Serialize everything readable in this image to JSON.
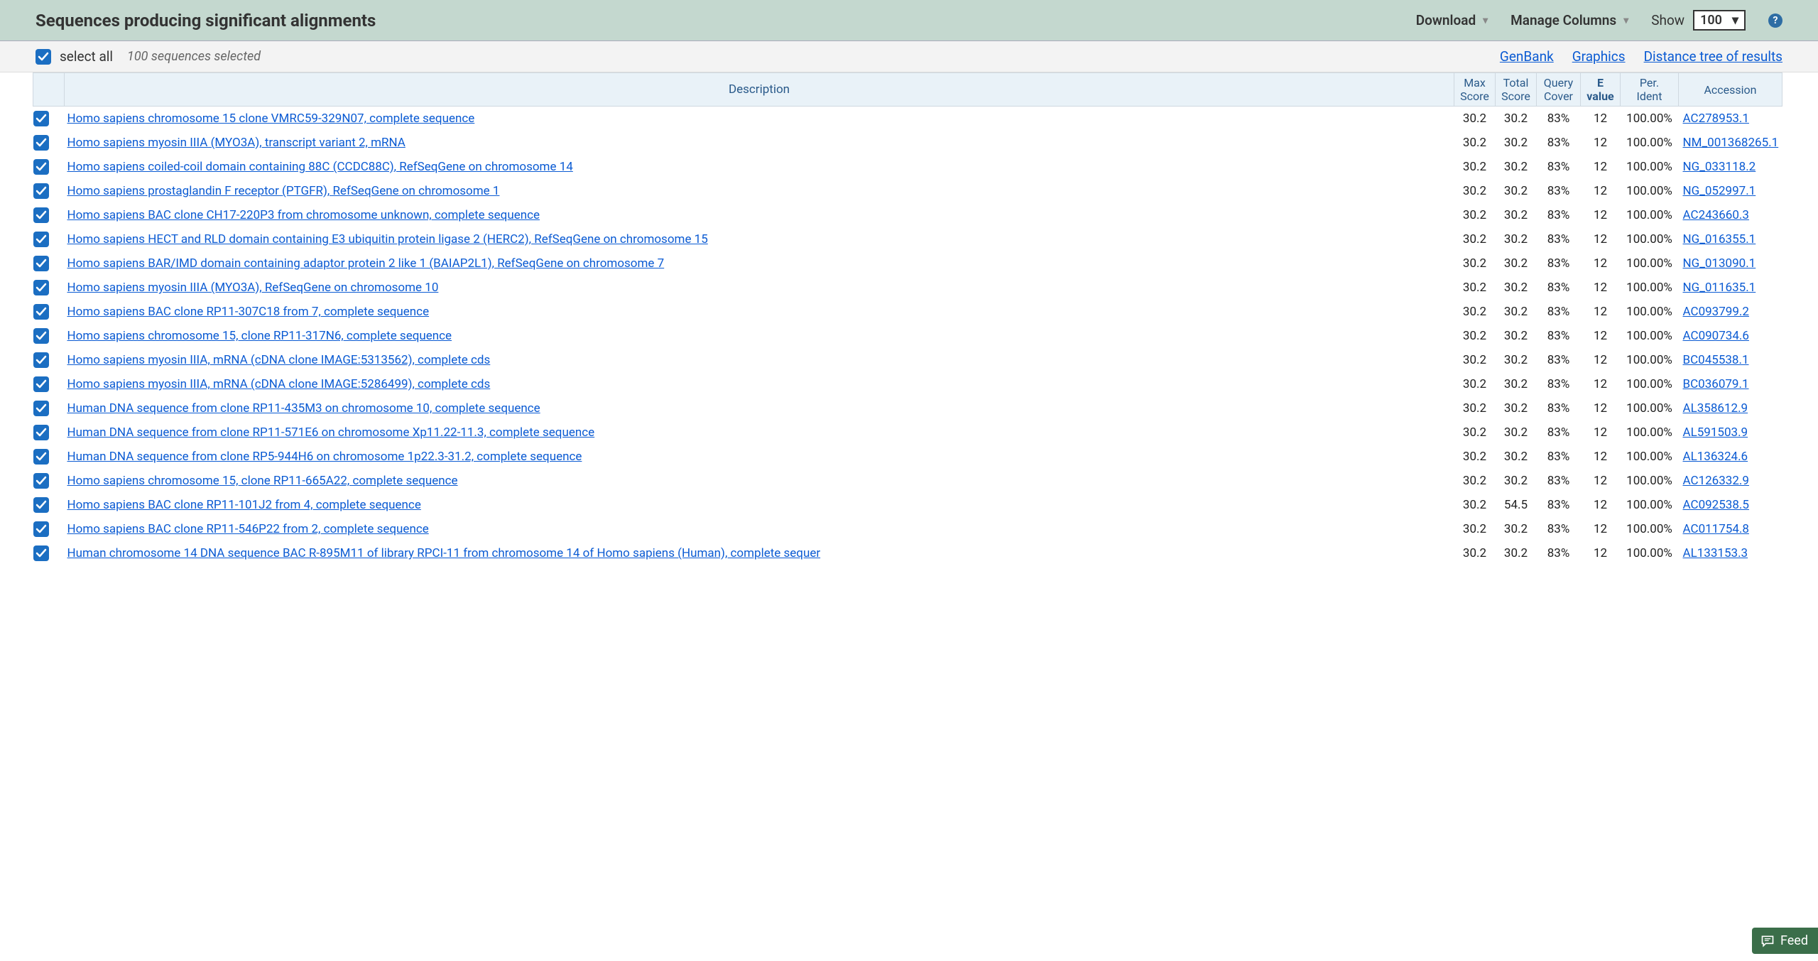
{
  "header": {
    "title": "Sequences producing significant alignments",
    "download_label": "Download",
    "manage_columns_label": "Manage Columns",
    "show_label": "Show",
    "show_value": "100"
  },
  "toolbar": {
    "select_all_label": "select all",
    "selected_text": "100 sequences selected",
    "links": {
      "genbank": "GenBank",
      "graphics": "Graphics",
      "distance_tree": "Distance tree of results"
    }
  },
  "columns": {
    "description": "Description",
    "max_score_l1": "Max",
    "max_score_l2": "Score",
    "total_score_l1": "Total",
    "total_score_l2": "Score",
    "query_cover_l1": "Query",
    "query_cover_l2": "Cover",
    "e_l1": "E",
    "e_l2": "value",
    "per_ident_l1": "Per.",
    "per_ident_l2": "Ident",
    "accession": "Accession"
  },
  "rows": [
    {
      "desc": "Homo sapiens chromosome 15 clone VMRC59-329N07, complete sequence",
      "max": "30.2",
      "total": "30.2",
      "cover": "83%",
      "e": "12",
      "ident": "100.00%",
      "acc": "AC278953.1"
    },
    {
      "desc": "Homo sapiens myosin IIIA (MYO3A), transcript variant 2, mRNA",
      "max": "30.2",
      "total": "30.2",
      "cover": "83%",
      "e": "12",
      "ident": "100.00%",
      "acc": "NM_001368265.1"
    },
    {
      "desc": "Homo sapiens coiled-coil domain containing 88C (CCDC88C), RefSeqGene on chromosome 14",
      "max": "30.2",
      "total": "30.2",
      "cover": "83%",
      "e": "12",
      "ident": "100.00%",
      "acc": "NG_033118.2"
    },
    {
      "desc": "Homo sapiens prostaglandin F receptor (PTGFR), RefSeqGene on chromosome 1",
      "max": "30.2",
      "total": "30.2",
      "cover": "83%",
      "e": "12",
      "ident": "100.00%",
      "acc": "NG_052997.1"
    },
    {
      "desc": "Homo sapiens BAC clone CH17-220P3 from chromosome unknown, complete sequence",
      "max": "30.2",
      "total": "30.2",
      "cover": "83%",
      "e": "12",
      "ident": "100.00%",
      "acc": "AC243660.3"
    },
    {
      "desc": "Homo sapiens HECT and RLD domain containing E3 ubiquitin protein ligase 2 (HERC2), RefSeqGene on chromosome 15",
      "max": "30.2",
      "total": "30.2",
      "cover": "83%",
      "e": "12",
      "ident": "100.00%",
      "acc": "NG_016355.1"
    },
    {
      "desc": "Homo sapiens BAR/IMD domain containing adaptor protein 2 like 1 (BAIAP2L1), RefSeqGene on chromosome 7",
      "max": "30.2",
      "total": "30.2",
      "cover": "83%",
      "e": "12",
      "ident": "100.00%",
      "acc": "NG_013090.1"
    },
    {
      "desc": "Homo sapiens myosin IIIA (MYO3A), RefSeqGene on chromosome 10",
      "max": "30.2",
      "total": "30.2",
      "cover": "83%",
      "e": "12",
      "ident": "100.00%",
      "acc": "NG_011635.1"
    },
    {
      "desc": "Homo sapiens BAC clone RP11-307C18 from 7, complete sequence",
      "max": "30.2",
      "total": "30.2",
      "cover": "83%",
      "e": "12",
      "ident": "100.00%",
      "acc": "AC093799.2"
    },
    {
      "desc": "Homo sapiens chromosome 15, clone RP11-317N6, complete sequence",
      "max": "30.2",
      "total": "30.2",
      "cover": "83%",
      "e": "12",
      "ident": "100.00%",
      "acc": "AC090734.6"
    },
    {
      "desc": "Homo sapiens myosin IIIA, mRNA (cDNA clone IMAGE:5313562), complete cds",
      "max": "30.2",
      "total": "30.2",
      "cover": "83%",
      "e": "12",
      "ident": "100.00%",
      "acc": "BC045538.1"
    },
    {
      "desc": "Homo sapiens myosin IIIA, mRNA (cDNA clone IMAGE:5286499), complete cds",
      "max": "30.2",
      "total": "30.2",
      "cover": "83%",
      "e": "12",
      "ident": "100.00%",
      "acc": "BC036079.1"
    },
    {
      "desc": "Human DNA sequence from clone RP11-435M3 on chromosome 10, complete sequence",
      "max": "30.2",
      "total": "30.2",
      "cover": "83%",
      "e": "12",
      "ident": "100.00%",
      "acc": "AL358612.9"
    },
    {
      "desc": "Human DNA sequence from clone RP11-571E6 on chromosome Xp11.22-11.3, complete sequence",
      "max": "30.2",
      "total": "30.2",
      "cover": "83%",
      "e": "12",
      "ident": "100.00%",
      "acc": "AL591503.9"
    },
    {
      "desc": "Human DNA sequence from clone RP5-944H6 on chromosome 1p22.3-31.2, complete sequence",
      "max": "30.2",
      "total": "30.2",
      "cover": "83%",
      "e": "12",
      "ident": "100.00%",
      "acc": "AL136324.6"
    },
    {
      "desc": "Homo sapiens chromosome 15, clone RP11-665A22, complete sequence",
      "max": "30.2",
      "total": "30.2",
      "cover": "83%",
      "e": "12",
      "ident": "100.00%",
      "acc": "AC126332.9"
    },
    {
      "desc": "Homo sapiens BAC clone RP11-101J2 from 4, complete sequence",
      "max": "30.2",
      "total": "54.5",
      "cover": "83%",
      "e": "12",
      "ident": "100.00%",
      "acc": "AC092538.5"
    },
    {
      "desc": "Homo sapiens BAC clone RP11-546P22 from 2, complete sequence",
      "max": "30.2",
      "total": "30.2",
      "cover": "83%",
      "e": "12",
      "ident": "100.00%",
      "acc": "AC011754.8"
    },
    {
      "desc": "Human chromosome 14 DNA sequence BAC R-895M11 of library RPCI-11 from chromosome 14 of Homo sapiens (Human), complete sequer",
      "max": "30.2",
      "total": "30.2",
      "cover": "83%",
      "e": "12",
      "ident": "100.00%",
      "acc": "AL133153.3"
    }
  ],
  "feedback_label": "Feed",
  "colors": {
    "header_bg": "#c4d8cf",
    "link": "#0b5bd3",
    "checkbox": "#1b6ec2",
    "th_bg": "#e9f2f8",
    "th_text": "#2a5a8a",
    "feedback_bg": "#3b6e4a"
  }
}
